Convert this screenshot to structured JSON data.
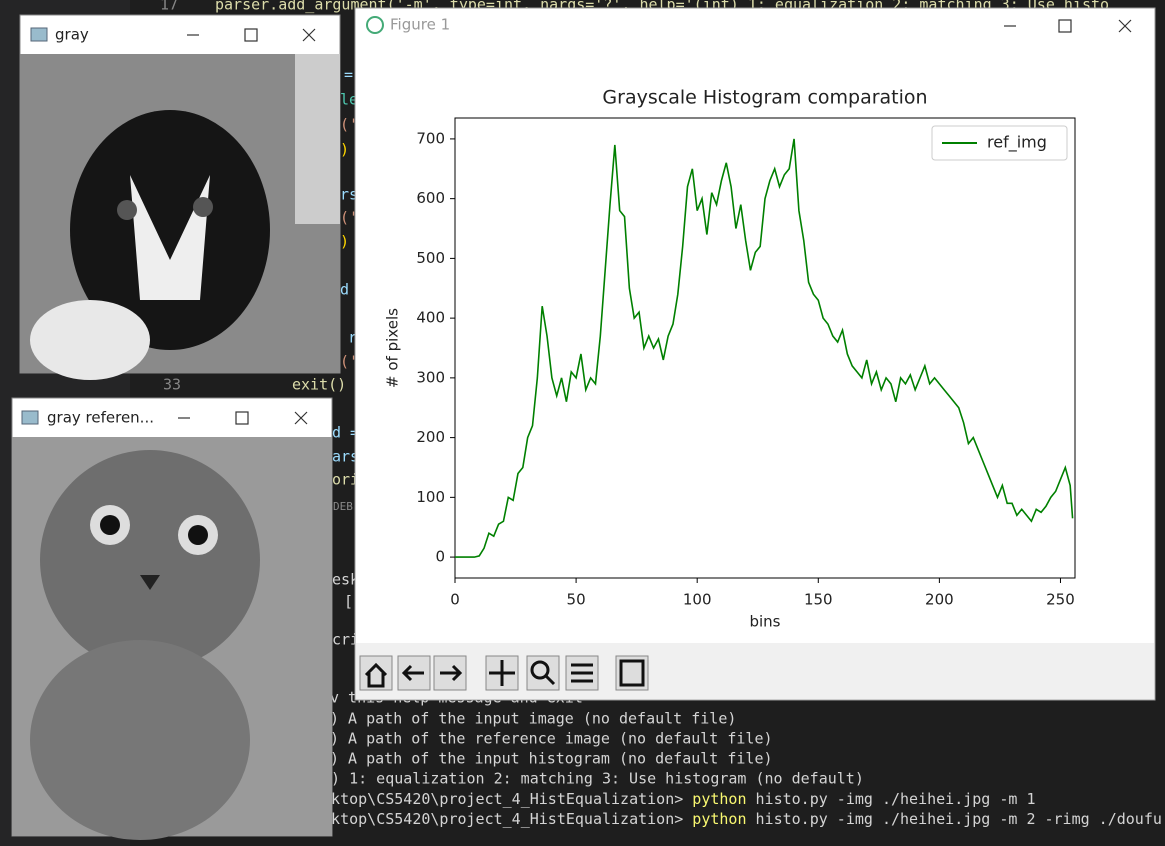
{
  "editor": {
    "line_numbers": [
      "17",
      "33"
    ],
    "code_top": "parser.add_argument('-m', type=int, nargs='?', help='(int) 1: equalization 2: matching 3: Use histo",
    "exit_call": "exit()",
    "fragments": [
      "=",
      "le",
      "('",
      ")",
      "rs",
      "('",
      ")",
      "d",
      "r",
      "('",
      "d =",
      "ars",
      "ori",
      "DEB",
      "esk",
      "[",
      "cri"
    ]
  },
  "terminal": {
    "hidden_line": "v this help message and exit",
    "help_lines": [
      ") A path of the input image (no default file)",
      ") A path of the reference image (no default file)",
      ") A path of the input histogram (no default file)",
      "c) 1: equalization 2: matching 3: Use histogram (no default)"
    ],
    "commands": [
      {
        "prompt": "esktop\\CS5420\\project_4_HistEqualization> ",
        "cmd": "python",
        "args": " histo.py -img ./heihei.jpg -m 1"
      },
      {
        "prompt": "esktop\\CS5420\\project_4_HistEqualization> ",
        "cmd": "python",
        "args": " histo.py -img ./heihei.jpg -m 2 -rimg ./doufu"
      }
    ]
  },
  "windows": {
    "gray": {
      "title": "gray"
    },
    "gray_reference": {
      "title": "gray referen..."
    },
    "figure": {
      "title": "Figure 1"
    }
  },
  "chart_data": {
    "type": "line",
    "title": "Grayscale Histogram comparation",
    "x_label": "bins",
    "y_label": "# of pixels",
    "x": [
      0,
      2,
      4,
      6,
      8,
      10,
      12,
      14,
      16,
      18,
      20,
      22,
      24,
      26,
      28,
      30,
      32,
      34,
      36,
      38,
      40,
      42,
      44,
      46,
      48,
      50,
      52,
      54,
      56,
      58,
      60,
      62,
      64,
      66,
      68,
      70,
      72,
      74,
      76,
      78,
      80,
      82,
      84,
      86,
      88,
      90,
      92,
      94,
      96,
      98,
      100,
      102,
      104,
      106,
      108,
      110,
      112,
      114,
      116,
      118,
      120,
      122,
      124,
      126,
      128,
      130,
      132,
      134,
      136,
      138,
      140,
      142,
      144,
      146,
      148,
      150,
      152,
      154,
      156,
      158,
      160,
      162,
      164,
      166,
      168,
      170,
      172,
      174,
      176,
      178,
      180,
      182,
      184,
      186,
      188,
      190,
      192,
      194,
      196,
      198,
      200,
      202,
      204,
      206,
      208,
      210,
      212,
      214,
      216,
      218,
      220,
      222,
      224,
      226,
      228,
      230,
      232,
      234,
      236,
      238,
      240,
      242,
      244,
      246,
      248,
      250,
      252,
      254,
      255
    ],
    "series": [
      {
        "name": "ref_img",
        "color": "#008000",
        "values": [
          0,
          0,
          0,
          0,
          0,
          2,
          15,
          40,
          35,
          55,
          60,
          100,
          95,
          140,
          150,
          200,
          220,
          300,
          420,
          370,
          300,
          270,
          300,
          260,
          310,
          300,
          340,
          280,
          300,
          290,
          370,
          480,
          590,
          690,
          580,
          570,
          450,
          400,
          410,
          350,
          370,
          350,
          365,
          330,
          370,
          390,
          440,
          520,
          620,
          650,
          580,
          600,
          540,
          610,
          590,
          630,
          660,
          620,
          550,
          590,
          530,
          480,
          510,
          520,
          600,
          630,
          650,
          620,
          640,
          650,
          700,
          580,
          530,
          460,
          440,
          430,
          400,
          390,
          370,
          360,
          380,
          340,
          320,
          310,
          300,
          330,
          290,
          310,
          280,
          300,
          290,
          260,
          300,
          290,
          305,
          280,
          300,
          320,
          290,
          300,
          290,
          280,
          270,
          260,
          250,
          225,
          190,
          200,
          180,
          160,
          140,
          120,
          100,
          120,
          90,
          90,
          70,
          80,
          70,
          60,
          80,
          75,
          85,
          100,
          110,
          130,
          150,
          120,
          65
        ]
      }
    ],
    "xlim": [
      0,
      256
    ],
    "ylim": [
      -35,
      735
    ],
    "xticks": [
      0,
      50,
      100,
      150,
      200,
      250
    ],
    "yticks": [
      0,
      100,
      200,
      300,
      400,
      500,
      600,
      700
    ],
    "legend": "upper right"
  }
}
